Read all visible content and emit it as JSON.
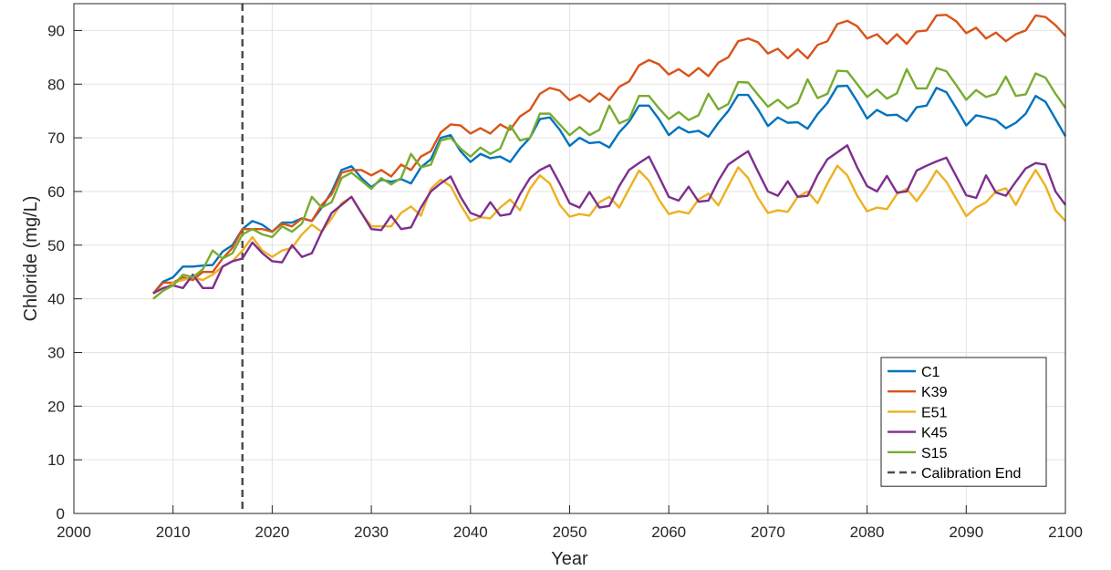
{
  "chart_data": {
    "type": "line",
    "xlabel": "Year",
    "ylabel": "Chloride (mg/L)",
    "xlim": [
      2000,
      2100
    ],
    "ylim": [
      0,
      95
    ],
    "xticks": [
      2000,
      2010,
      2020,
      2030,
      2040,
      2050,
      2060,
      2070,
      2080,
      2090,
      2100
    ],
    "yticks": [
      0,
      10,
      20,
      30,
      40,
      50,
      60,
      70,
      80,
      90
    ],
    "grid": true,
    "legend_position": "bottom-right",
    "x": [
      2008,
      2009,
      2010,
      2011,
      2012,
      2013,
      2014,
      2015,
      2016,
      2017,
      2018,
      2019,
      2020,
      2021,
      2022,
      2023,
      2024,
      2025,
      2026,
      2027,
      2028,
      2029,
      2030,
      2031,
      2032,
      2033,
      2034,
      2035,
      2036,
      2037,
      2038,
      2039,
      2040,
      2041,
      2042,
      2043,
      2044,
      2045,
      2046,
      2047,
      2048,
      2049,
      2050,
      2051,
      2052,
      2053,
      2054,
      2055,
      2056,
      2057,
      2058,
      2059,
      2060,
      2061,
      2062,
      2063,
      2064,
      2065,
      2066,
      2067,
      2068,
      2069,
      2070,
      2071,
      2072,
      2073,
      2074,
      2075,
      2076,
      2077,
      2078,
      2079,
      2080,
      2081,
      2082,
      2083,
      2084,
      2085,
      2086,
      2087,
      2088,
      2089,
      2090,
      2091,
      2092,
      2093,
      2094,
      2095,
      2096,
      2097,
      2098,
      2099,
      2100
    ],
    "series": [
      {
        "name": "C1",
        "color": "#0072BD",
        "values": [
          41.0,
          43.2,
          44.0,
          46.0,
          46.0,
          46.2,
          46.3,
          48.8,
          50.0,
          53.0,
          54.5,
          53.8,
          52.5,
          54.2,
          54.2,
          55.0,
          54.5,
          57.0,
          60.0,
          64.0,
          64.7,
          62.5,
          60.8,
          62.2,
          61.8,
          62.3,
          61.5,
          64.5,
          66.0,
          70.0,
          70.5,
          67.5,
          65.5,
          67.0,
          66.2,
          66.5,
          65.5,
          68.0,
          70.0,
          73.5,
          73.8,
          71.5,
          68.5,
          70.0,
          69.0,
          69.2,
          68.2,
          71.0,
          73.0,
          76.0,
          76.0,
          73.5,
          70.5,
          72.0,
          71.0,
          71.3,
          70.2,
          72.8,
          75.0,
          78.0,
          78.0,
          75.3,
          72.2,
          73.8,
          72.8,
          72.9,
          71.7,
          74.4,
          76.5,
          79.6,
          79.7,
          76.8,
          73.6,
          75.2,
          74.2,
          74.3,
          73.1,
          75.7,
          76.0,
          79.3,
          78.5,
          75.5,
          72.3,
          74.2,
          73.8,
          73.3,
          71.8,
          72.8,
          74.5,
          77.8,
          76.7,
          73.5,
          70.3
        ]
      },
      {
        "name": "K39",
        "color": "#D95319",
        "values": [
          41.0,
          43.0,
          43.0,
          44.0,
          43.5,
          45.0,
          45.0,
          47.5,
          49.5,
          53.0,
          53.0,
          53.0,
          52.5,
          54.0,
          53.5,
          55.0,
          54.5,
          57.5,
          59.5,
          63.5,
          64.0,
          64.0,
          63.0,
          64.0,
          62.8,
          65.0,
          64.0,
          66.5,
          67.5,
          71.0,
          72.5,
          72.3,
          70.8,
          71.8,
          70.8,
          72.5,
          71.5,
          74.0,
          75.2,
          78.2,
          79.3,
          78.8,
          77.0,
          78.0,
          76.7,
          78.3,
          77.0,
          79.5,
          80.5,
          83.5,
          84.5,
          83.7,
          81.8,
          82.8,
          81.5,
          83.0,
          81.5,
          84.0,
          85.0,
          88.0,
          88.5,
          87.8,
          85.7,
          86.6,
          84.8,
          86.5,
          84.8,
          87.3,
          88.0,
          91.2,
          91.8,
          90.8,
          88.5,
          89.3,
          87.5,
          89.3,
          87.5,
          89.8,
          90.0,
          92.8,
          92.9,
          91.7,
          89.5,
          90.5,
          88.5,
          89.6,
          88.0,
          89.3,
          90.0,
          92.8,
          92.5,
          91.0,
          89.0
        ]
      },
      {
        "name": "E51",
        "color": "#EDB120",
        "values": [
          40.0,
          41.5,
          43.0,
          43.5,
          44.0,
          43.5,
          44.5,
          46.0,
          47.0,
          49.0,
          51.5,
          49.0,
          47.8,
          49.0,
          49.5,
          52.0,
          53.8,
          52.5,
          55.0,
          57.8,
          59.0,
          56.0,
          53.5,
          53.5,
          53.5,
          56.0,
          57.2,
          55.5,
          60.5,
          62.2,
          61.0,
          57.5,
          54.5,
          55.2,
          55.0,
          57.0,
          58.5,
          56.5,
          60.5,
          63.0,
          61.5,
          57.5,
          55.3,
          55.8,
          55.5,
          58.0,
          59.0,
          57.0,
          60.5,
          63.9,
          62.0,
          58.5,
          55.8,
          56.3,
          55.9,
          58.5,
          59.6,
          57.4,
          61.0,
          64.5,
          62.5,
          58.8,
          56.0,
          56.5,
          56.2,
          59.0,
          60.0,
          57.8,
          61.5,
          64.8,
          63.0,
          59.2,
          56.3,
          57.0,
          56.7,
          59.5,
          60.5,
          58.2,
          60.8,
          63.9,
          61.8,
          58.6,
          55.4,
          57.0,
          58.0,
          60.0,
          60.6,
          57.5,
          61.0,
          64.0,
          61.0,
          56.5,
          54.5
        ]
      },
      {
        "name": "K45",
        "color": "#7E2F8E",
        "values": [
          41.0,
          42.0,
          42.5,
          42.0,
          44.5,
          42.0,
          42.0,
          46.0,
          47.0,
          47.5,
          50.5,
          48.5,
          47.0,
          46.8,
          50.0,
          47.8,
          48.5,
          52.5,
          56.0,
          57.5,
          59.0,
          56.0,
          53.0,
          52.8,
          55.5,
          53.0,
          53.3,
          57.0,
          60.0,
          61.5,
          62.8,
          59.0,
          56.0,
          55.3,
          58.0,
          55.5,
          55.8,
          59.5,
          62.5,
          64.0,
          64.9,
          61.5,
          57.8,
          57.0,
          59.9,
          57.0,
          57.3,
          61.0,
          64.0,
          65.3,
          66.5,
          62.8,
          59.0,
          58.3,
          60.9,
          58.1,
          58.3,
          62.0,
          65.0,
          66.3,
          67.5,
          63.7,
          60.0,
          59.2,
          61.9,
          59.0,
          59.2,
          63.0,
          66.0,
          67.3,
          68.6,
          64.5,
          61.0,
          60.0,
          62.9,
          59.8,
          60.0,
          63.9,
          64.8,
          65.6,
          66.3,
          62.8,
          59.3,
          58.8,
          63.0,
          59.8,
          59.2,
          61.8,
          64.3,
          65.3,
          65.0,
          60.0,
          57.5
        ]
      },
      {
        "name": "S15",
        "color": "#77AC30",
        "values": [
          40.0,
          41.5,
          42.5,
          44.5,
          44.0,
          45.5,
          49.0,
          47.5,
          48.5,
          52.0,
          53.0,
          52.0,
          51.5,
          53.5,
          52.5,
          54.0,
          59.0,
          57.0,
          58.0,
          62.5,
          63.5,
          62.0,
          60.5,
          62.5,
          61.3,
          62.5,
          67.0,
          64.5,
          65.0,
          69.5,
          70.0,
          68.0,
          66.5,
          68.2,
          67.0,
          68.0,
          72.3,
          69.5,
          70.0,
          74.5,
          74.5,
          72.5,
          70.5,
          72.0,
          70.5,
          71.5,
          76.0,
          72.7,
          73.5,
          77.8,
          77.8,
          75.5,
          73.5,
          74.8,
          73.3,
          74.2,
          78.2,
          75.3,
          76.3,
          80.4,
          80.3,
          78.0,
          75.8,
          77.1,
          75.5,
          76.5,
          80.9,
          77.4,
          78.2,
          82.5,
          82.4,
          80.0,
          77.6,
          79.0,
          77.3,
          78.3,
          82.8,
          79.2,
          79.2,
          83.0,
          82.4,
          79.8,
          77.1,
          78.9,
          77.6,
          78.2,
          81.4,
          77.8,
          78.1,
          82.0,
          81.2,
          78.2,
          75.6
        ]
      }
    ],
    "annotations": [
      {
        "type": "vertical-dashed-line",
        "x": 2017,
        "label": "Calibration End"
      }
    ]
  }
}
